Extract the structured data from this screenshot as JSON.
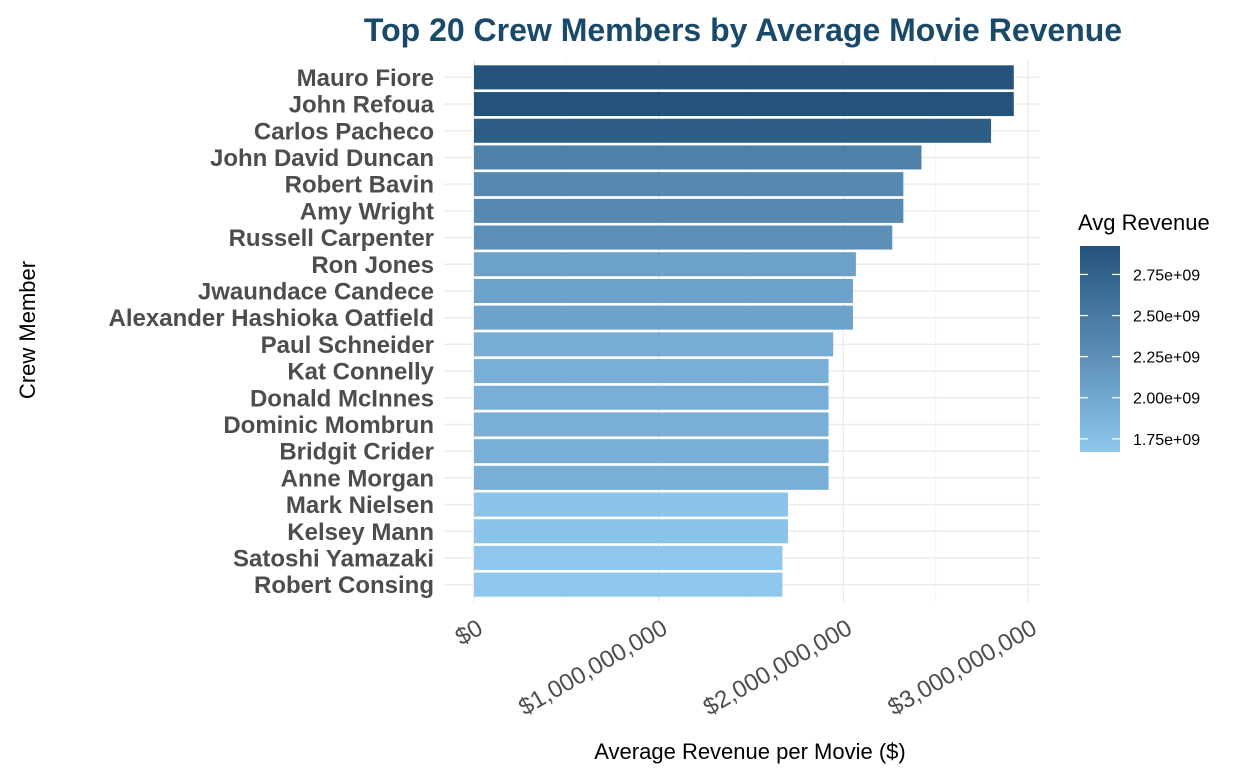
{
  "chart_data": {
    "type": "bar",
    "orientation": "horizontal",
    "title": "Top 20 Crew Members by Average Movie Revenue",
    "xlabel": "Average Revenue per Movie ($)",
    "ylabel": "Crew Member",
    "xlim": [
      0,
      3050000000
    ],
    "x_ticks": [
      0,
      1000000000,
      2000000000,
      3000000000
    ],
    "x_tick_labels": [
      "$0",
      "$1,000,000,000",
      "$2,000,000,000",
      "$3,000,000,000"
    ],
    "grid": true,
    "categories": [
      "Mauro Fiore",
      "John Refoua",
      "Carlos Pacheco",
      "John David Duncan",
      "Robert Bavin",
      "Amy Wright",
      "Russell Carpenter",
      "Ron Jones",
      "Jwaundace Candece",
      "Alexander Hashioka Oatfield",
      "Paul Schneider",
      "Kat Connelly",
      "Donald McInnes",
      "Dominic Mombrun",
      "Bridgit Crider",
      "Anne Morgan",
      "Mark Nielsen",
      "Kelsey Mann",
      "Satoshi Yamazaki",
      "Robert Consing"
    ],
    "values": [
      2923000000,
      2923000000,
      2800000000,
      2423000000,
      2325000000,
      2325000000,
      2265000000,
      2068000000,
      2052000000,
      2052000000,
      1945000000,
      1920000000,
      1920000000,
      1920000000,
      1920000000,
      1920000000,
      1700000000,
      1700000000,
      1670000000,
      1670000000
    ],
    "color_scale": {
      "title": "Avg Revenue",
      "low_color": "#8ec6ee",
      "high_color": "#23527a",
      "domain": [
        1670000000,
        2923000000
      ],
      "tick_values": [
        1750000000,
        2000000000,
        2250000000,
        2500000000,
        2750000000
      ],
      "tick_labels": [
        "1.75e+09",
        "2.00e+09",
        "2.25e+09",
        "2.50e+09",
        "2.75e+09"
      ]
    },
    "legend_position": "right"
  }
}
